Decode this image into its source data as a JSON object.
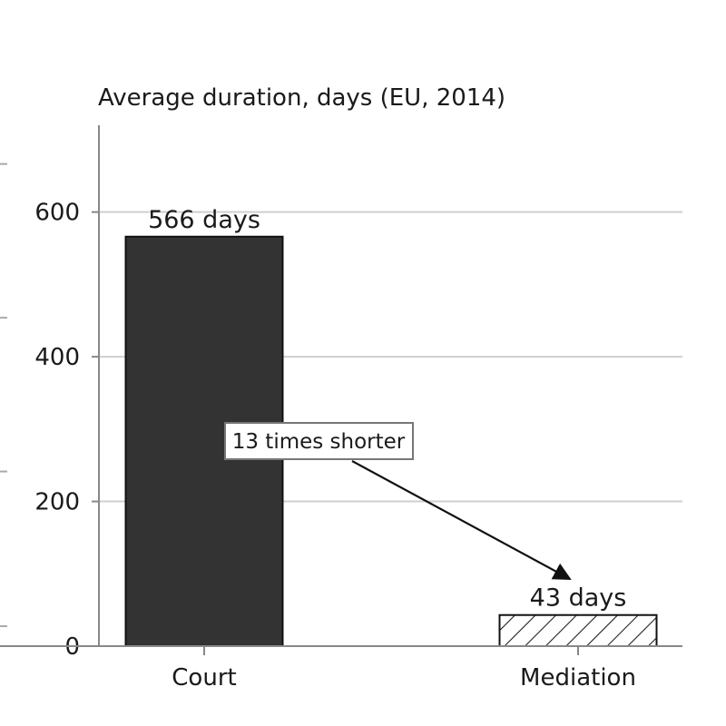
{
  "chart_data": {
    "type": "bar",
    "title": "Average duration, days (EU, 2014)",
    "xlabel": "",
    "ylabel": "",
    "categories": [
      "Court",
      "Mediation"
    ],
    "values": [
      566,
      43
    ],
    "value_labels": [
      "566 days",
      "43 days"
    ],
    "ylim": [
      0,
      720
    ],
    "yticks": [
      0,
      200,
      400,
      600
    ],
    "grid": true,
    "bar_styles": [
      {
        "fill": "#333333",
        "pattern": "solid"
      },
      {
        "fill": "#ffffff",
        "pattern": "diagonal-hatch"
      }
    ],
    "annotation": {
      "text": "13 times shorter",
      "from_category": "Court",
      "to_category": "Mediation"
    }
  }
}
